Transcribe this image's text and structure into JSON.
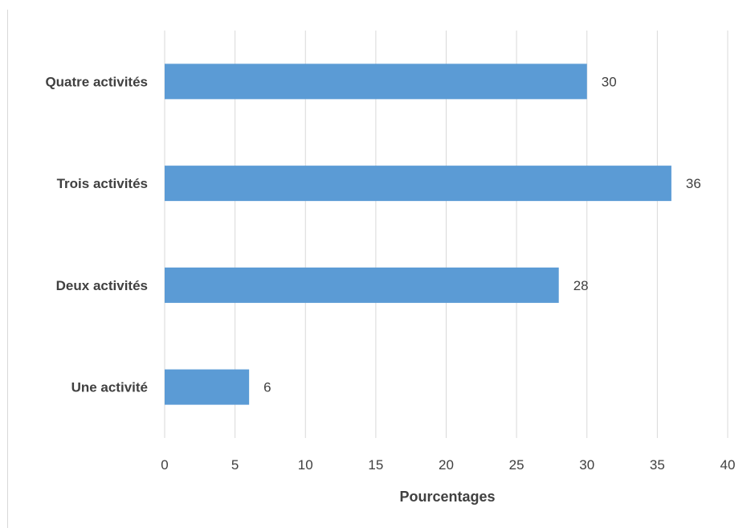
{
  "chart_data": {
    "type": "bar",
    "orientation": "horizontal",
    "title": "",
    "xlabel": "Pourcentages",
    "ylabel": "",
    "categories": [
      "Une activité",
      "Deux activités",
      "Trois activités",
      "Quatre activités"
    ],
    "values": [
      6,
      28,
      36,
      30
    ],
    "data_labels": [
      "6",
      "28",
      "36",
      "30"
    ],
    "xlim": [
      0,
      40
    ],
    "x_ticks": [
      "0",
      "5",
      "10",
      "15",
      "20",
      "25",
      "30",
      "35",
      "40"
    ],
    "grid": "vertical",
    "legend": "none"
  },
  "colors": {
    "bar": "#5B9BD5",
    "grid": "#d9d9d9",
    "text": "#404040"
  }
}
